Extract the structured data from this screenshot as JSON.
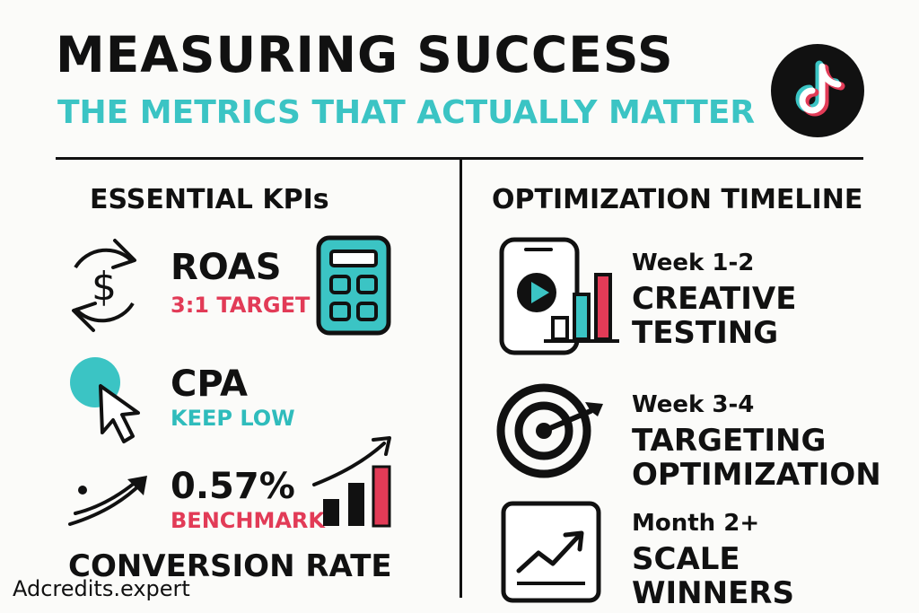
{
  "header": {
    "title": "MEASURING SUCCESS",
    "subtitle": "THE METRICS THAT ACTUALLY MATTER",
    "logo_icon": "tiktok-logo"
  },
  "kpis": {
    "heading": "ESSENTIAL KPIs",
    "items": [
      {
        "name": "ROAS",
        "sub": "3:1 TARGET",
        "icon": "dollar-cycle-icon",
        "side_icon": "calculator-icon"
      },
      {
        "name": "CPA",
        "sub": "KEEP LOW",
        "icon": "click-cursor-icon"
      },
      {
        "name": "0.57%",
        "sub": "BENCHMARK",
        "icon": "upward-arrow-icon",
        "side_icon": "growth-bar-chart-icon"
      }
    ],
    "footer_label": "CONVERSION RATE"
  },
  "timeline": {
    "heading": "OPTIMIZATION TIMELINE",
    "steps": [
      {
        "period": "Week 1-2",
        "line1": "CREATIVE",
        "line2": "TESTING",
        "icon": "phone-video-chart-icon"
      },
      {
        "period": "Week 3-4",
        "line1": "TARGETING",
        "line2": "OPTIMIZATION",
        "icon": "target-dart-icon"
      },
      {
        "period": "Month 2+",
        "line1": "SCALE",
        "line2": "WINNERS",
        "icon": "trend-chart-icon"
      }
    ]
  },
  "brand": "Adcredits.expert",
  "colors": {
    "teal": "#3bc4c4",
    "pink": "#e23b57",
    "ink": "#111111"
  }
}
